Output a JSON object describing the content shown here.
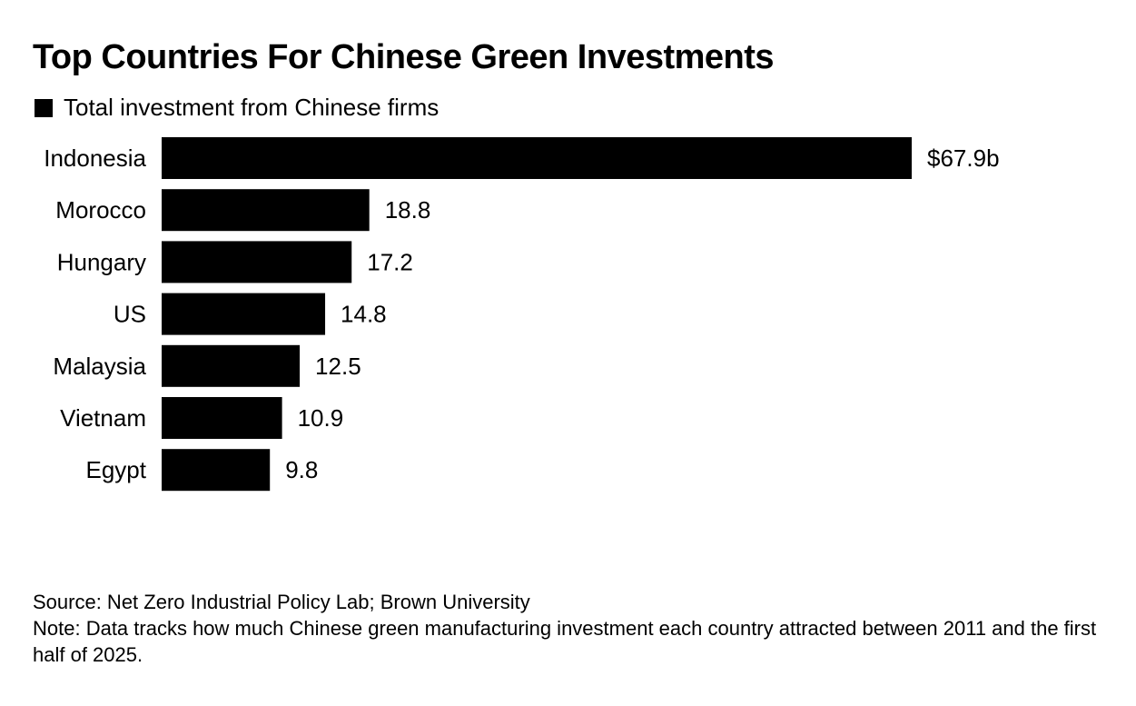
{
  "chart_data": {
    "type": "bar",
    "orientation": "horizontal",
    "title": "Top Countries For Chinese Green Investments",
    "legend": [
      "Total investment from Chinese firms"
    ],
    "legend_position": "top-left",
    "categories": [
      "Indonesia",
      "Morocco",
      "Hungary",
      "US",
      "Malaysia",
      "Vietnam",
      "Egypt"
    ],
    "series": [
      {
        "name": "Total investment from Chinese firms",
        "values": [
          67.9,
          18.8,
          17.2,
          14.8,
          12.5,
          10.9,
          9.8
        ],
        "color": "#000000"
      }
    ],
    "data_labels": [
      "$67.9b",
      "18.8",
      "17.2",
      "14.8",
      "12.5",
      "10.9",
      "9.8"
    ],
    "xlabel": "",
    "ylabel": "",
    "unit": "USD billions",
    "xlim": [
      0,
      67.9
    ],
    "grid": false,
    "source": "Source: Net Zero Industrial Policy Lab; Brown University",
    "note": "Note: Data tracks how much Chinese green manufacturing investment each country attracted between 2011 and the first half of 2025."
  }
}
